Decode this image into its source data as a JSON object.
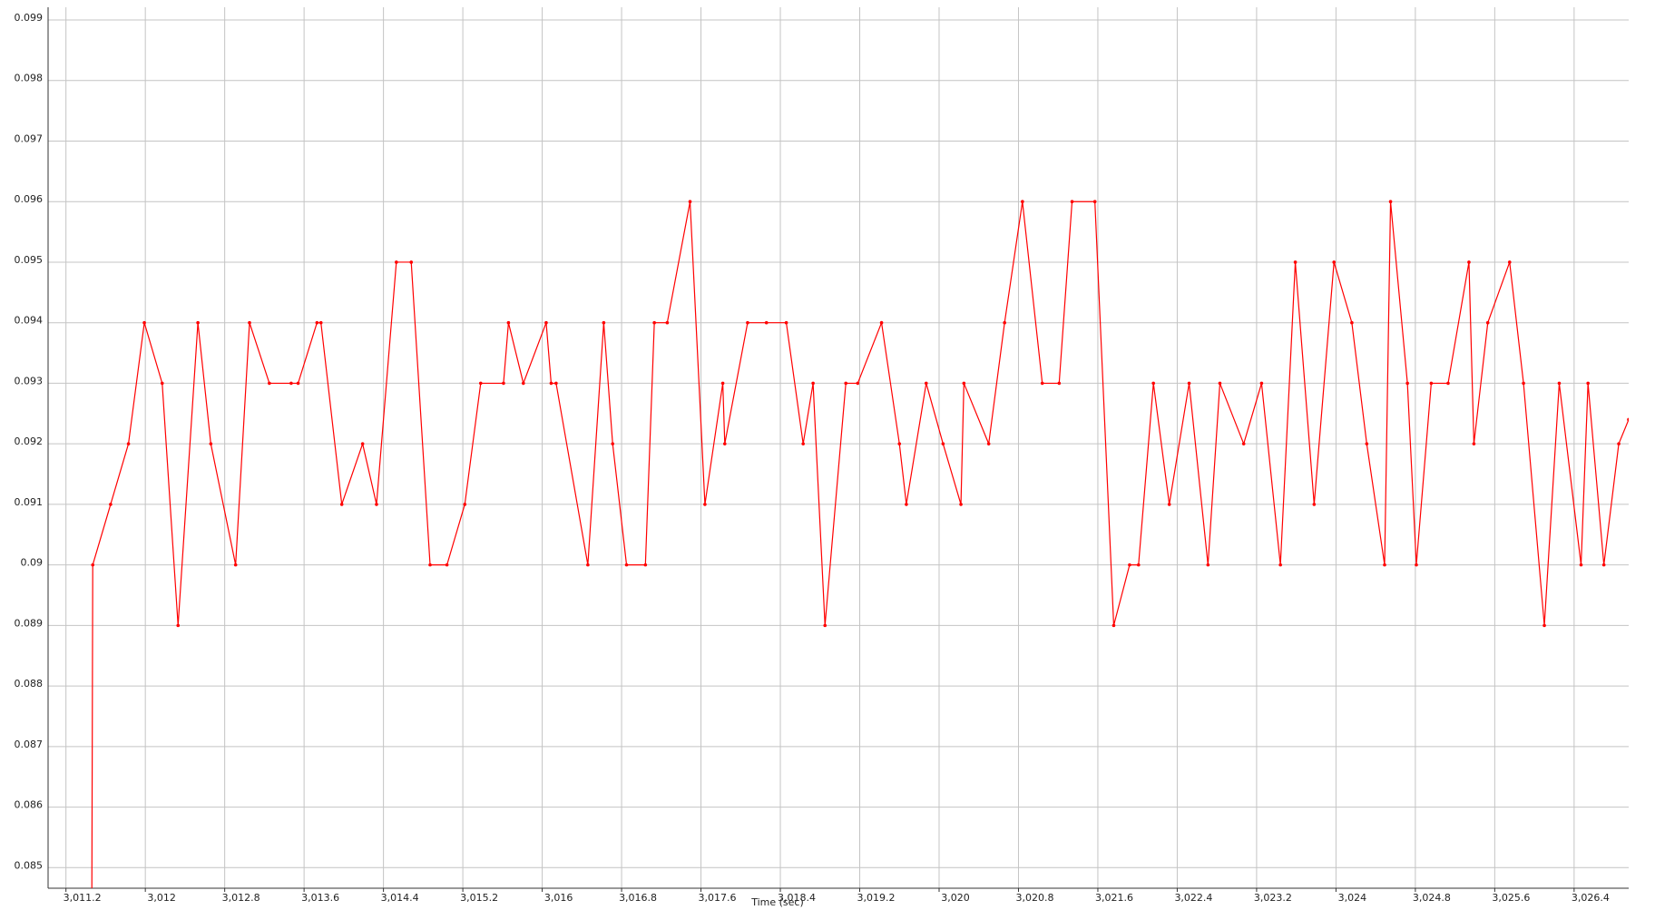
{
  "chart_data": {
    "type": "line",
    "x_label": "Time (sec)",
    "color": "#ff0000",
    "grid": true,
    "x": [
      3011.46,
      3011.47,
      3011.65,
      3011.83,
      3011.99,
      3012.17,
      3012.33,
      3012.53,
      3012.66,
      3012.91,
      3013.05,
      3013.25,
      3013.47,
      3013.54,
      3013.73,
      3013.77,
      3013.98,
      3014.19,
      3014.33,
      3014.53,
      3014.68,
      3014.87,
      3015.04,
      3015.22,
      3015.38,
      3015.61,
      3015.66,
      3015.81,
      3016.04,
      3016.09,
      3016.14,
      3016.46,
      3016.62,
      3016.71,
      3016.85,
      3017.04,
      3017.13,
      3017.26,
      3017.49,
      3017.64,
      3017.82,
      3017.84,
      3018.07,
      3018.26,
      3018.46,
      3018.63,
      3018.73,
      3018.85,
      3019.06,
      3019.18,
      3019.42,
      3019.6,
      3019.67,
      3019.87,
      3020.04,
      3020.22,
      3020.25,
      3020.5,
      3020.66,
      3020.84,
      3021.04,
      3021.21,
      3021.34,
      3021.57,
      3021.76,
      3021.92,
      3022.01,
      3022.16,
      3022.32,
      3022.52,
      3022.71,
      3022.83,
      3023.07,
      3023.25,
      3023.44,
      3023.59,
      3023.78,
      3023.98,
      3024.16,
      3024.31,
      3024.49,
      3024.55,
      3024.72,
      3024.81,
      3024.96,
      3025.13,
      3025.34,
      3025.39,
      3025.53,
      3025.75,
      3025.89,
      3026.1,
      3026.25,
      3026.47,
      3026.54,
      3026.7,
      3026.85,
      3026.95
    ],
    "values": [
      0.084,
      0.09,
      0.091,
      0.092,
      0.094,
      0.093,
      0.089,
      0.094,
      0.092,
      0.09,
      0.094,
      0.093,
      0.093,
      0.093,
      0.094,
      0.094,
      0.091,
      0.092,
      0.091,
      0.095,
      0.095,
      0.09,
      0.09,
      0.091,
      0.093,
      0.093,
      0.094,
      0.093,
      0.094,
      0.093,
      0.093,
      0.09,
      0.094,
      0.092,
      0.09,
      0.09,
      0.094,
      0.094,
      0.096,
      0.091,
      0.093,
      0.092,
      0.094,
      0.094,
      0.094,
      0.092,
      0.093,
      0.089,
      0.093,
      0.093,
      0.094,
      0.092,
      0.091,
      0.093,
      0.092,
      0.091,
      0.093,
      0.092,
      0.094,
      0.096,
      0.093,
      0.093,
      0.096,
      0.096,
      0.089,
      0.09,
      0.09,
      0.093,
      0.091,
      0.093,
      0.09,
      0.093,
      0.092,
      0.093,
      0.09,
      0.095,
      0.091,
      0.095,
      0.094,
      0.092,
      0.09,
      0.096,
      0.093,
      0.09,
      0.093,
      0.093,
      0.095,
      0.092,
      0.094,
      0.095,
      0.093,
      0.089,
      0.093,
      0.09,
      0.093,
      0.09,
      0.092,
      0.0924
    ],
    "xlim": [
      3011.02,
      3026.95
    ],
    "xticks": [
      {
        "value": 3011.2,
        "label": "3,011.2"
      },
      {
        "value": 3012,
        "label": "3,012"
      },
      {
        "value": 3012.8,
        "label": "3,012.8"
      },
      {
        "value": 3013.6,
        "label": "3,013.6"
      },
      {
        "value": 3014.4,
        "label": "3,014.4"
      },
      {
        "value": 3015.2,
        "label": "3,015.2"
      },
      {
        "value": 3016,
        "label": "3,016"
      },
      {
        "value": 3016.8,
        "label": "3,016.8"
      },
      {
        "value": 3017.6,
        "label": "3,017.6"
      },
      {
        "value": 3018.4,
        "label": "3,018.4"
      },
      {
        "value": 3019.2,
        "label": "3,019.2"
      },
      {
        "value": 3020,
        "label": "3,020"
      },
      {
        "value": 3020.8,
        "label": "3,020.8"
      },
      {
        "value": 3021.6,
        "label": "3,021.6"
      },
      {
        "value": 3022.4,
        "label": "3,022.4"
      },
      {
        "value": 3023.2,
        "label": "3,023.2"
      },
      {
        "value": 3024,
        "label": "3,024"
      },
      {
        "value": 3024.8,
        "label": "3,024.8"
      },
      {
        "value": 3025.6,
        "label": "3,025.6"
      },
      {
        "value": 3026.4,
        "label": "3,026.4"
      }
    ],
    "ylim": [
      0.08466,
      0.09921
    ],
    "yticks": [
      0.085,
      0.086,
      0.087,
      0.088,
      0.089,
      0.09,
      0.091,
      0.092,
      0.093,
      0.094,
      0.095,
      0.096,
      0.097,
      0.098,
      0.099
    ]
  }
}
